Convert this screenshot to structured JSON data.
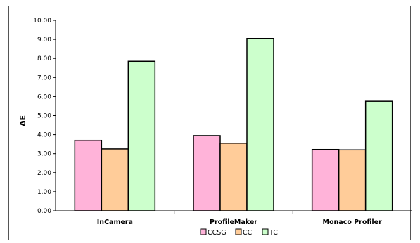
{
  "chart_data": {
    "type": "bar",
    "title": "",
    "xlabel": "",
    "ylabel": "ΔE",
    "ylim": [
      0,
      10
    ],
    "yticks": [
      "0.00",
      "1.00",
      "2.00",
      "3.00",
      "4.00",
      "5.00",
      "6.00",
      "7.00",
      "8.00",
      "9.00",
      "10.00"
    ],
    "categories": [
      "InCamera",
      "ProfileMaker",
      "Monaco Profiler"
    ],
    "series": [
      {
        "name": "CCSG",
        "color": "#ffb3d9",
        "values": [
          3.7,
          3.95,
          3.22
        ]
      },
      {
        "name": "CC",
        "color": "#ffcc99",
        "values": [
          3.25,
          3.55,
          3.2
        ]
      },
      {
        "name": "TC",
        "color": "#ccffcc",
        "values": [
          7.85,
          9.05,
          5.75
        ]
      }
    ],
    "grid": false,
    "legend": "bottom"
  }
}
